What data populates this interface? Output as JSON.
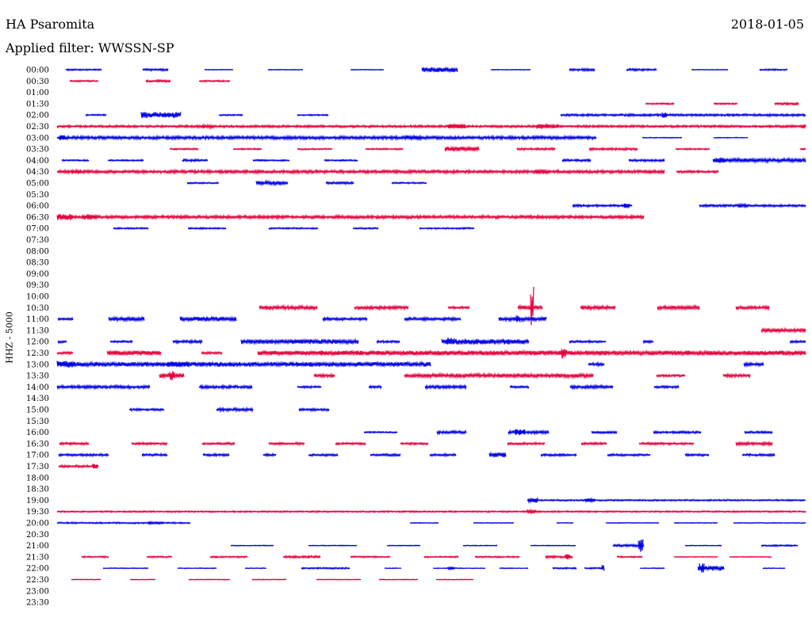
{
  "header": {
    "station": "HA Psaromita",
    "date": "2018-01-05",
    "filter": "Applied filter: WWSSN-SP"
  },
  "chart_data": {
    "type": "line",
    "title": "HA Psaromita",
    "ylabel": "HHZ - 5000",
    "row_labels": [
      "00:00",
      "00:30",
      "01:00",
      "01:30",
      "02:00",
      "02:30",
      "03:00",
      "03:30",
      "04:00",
      "04:30",
      "05:00",
      "05:30",
      "06:00",
      "06:30",
      "07:00",
      "07:30",
      "08:00",
      "08:30",
      "09:00",
      "09:30",
      "10:00",
      "10:30",
      "11:00",
      "11:30",
      "12:00",
      "12:30",
      "13:00",
      "13:30",
      "14:00",
      "14:30",
      "15:00",
      "15:30",
      "16:00",
      "16:30",
      "17:00",
      "17:30",
      "18:00",
      "18:30",
      "19:00",
      "19:30",
      "20:00",
      "20:30",
      "21:00",
      "21:30",
      "22:00",
      "22:30",
      "23:00",
      "23:30"
    ],
    "colors": {
      "even": "#0000e6",
      "odd": "#e6003c"
    },
    "rows": [
      {
        "label": "00:00",
        "segments": [
          [
            83,
            128,
            2
          ],
          [
            180,
            212,
            3
          ],
          [
            258,
            294,
            1
          ],
          [
            338,
            382,
            1
          ],
          [
            442,
            484,
            1
          ],
          [
            532,
            577,
            6
          ],
          [
            619,
            669,
            1
          ],
          [
            718,
            750,
            3
          ],
          [
            790,
            828,
            3
          ],
          [
            872,
            918,
            1
          ],
          [
            958,
            993,
            2
          ]
        ]
      },
      {
        "label": "00:30",
        "segments": [
          [
            88,
            124,
            2
          ],
          [
            184,
            215,
            3
          ],
          [
            251,
            290,
            2
          ]
        ]
      },
      {
        "label": "01:00",
        "segments": []
      },
      {
        "label": "01:30",
        "segments": [
          [
            814,
            850,
            2
          ],
          [
            900,
            930,
            2
          ],
          [
            977,
            1007,
            3
          ]
        ]
      },
      {
        "label": "02:00",
        "segments": [
          [
            108,
            134,
            2
          ],
          [
            178,
            228,
            8
          ],
          [
            276,
            306,
            2
          ],
          [
            375,
            414,
            2
          ],
          [
            707,
            1016,
            3
          ],
          [
            835,
            842,
            7
          ]
        ]
      },
      {
        "label": "02:30",
        "segments": [
          [
            72,
            1016,
            3
          ],
          [
            254,
            270,
            5
          ],
          [
            565,
            586,
            5
          ],
          [
            676,
            704,
            6
          ],
          [
            1010,
            1016,
            5
          ]
        ]
      },
      {
        "label": "03:00",
        "segments": [
          [
            72,
            752,
            4
          ],
          [
            75,
            82,
            6
          ],
          [
            512,
            532,
            6
          ],
          [
            810,
            860,
            1
          ],
          [
            900,
            943,
            1
          ]
        ]
      },
      {
        "label": "03:30",
        "segments": [
          [
            214,
            250,
            2
          ],
          [
            294,
            330,
            2
          ],
          [
            375,
            419,
            2
          ],
          [
            461,
            508,
            2
          ],
          [
            561,
            604,
            6
          ],
          [
            652,
            700,
            3
          ],
          [
            743,
            804,
            3
          ],
          [
            852,
            895,
            2
          ],
          [
            1009,
            1016,
            2
          ]
        ]
      },
      {
        "label": "04:00",
        "segments": [
          [
            78,
            112,
            2
          ],
          [
            136,
            181,
            2
          ],
          [
            230,
            262,
            3
          ],
          [
            319,
            365,
            2
          ],
          [
            409,
            451,
            2
          ],
          [
            709,
            745,
            3
          ],
          [
            793,
            838,
            3
          ],
          [
            899,
            1016,
            5
          ],
          [
            903,
            915,
            7
          ]
        ]
      },
      {
        "label": "04:30",
        "segments": [
          [
            72,
            838,
            4
          ],
          [
            90,
            102,
            6
          ],
          [
            674,
            692,
            6
          ],
          [
            853,
            906,
            3
          ]
        ]
      },
      {
        "label": "05:00",
        "segments": [
          [
            236,
            276,
            2
          ],
          [
            323,
            363,
            5
          ],
          [
            411,
            446,
            3
          ],
          [
            494,
            538,
            2
          ]
        ]
      },
      {
        "label": "05:30",
        "segments": []
      },
      {
        "label": "06:00",
        "segments": [
          [
            722,
            797,
            3
          ],
          [
            787,
            793,
            6
          ],
          [
            882,
            1016,
            3
          ],
          [
            930,
            942,
            5
          ]
        ]
      },
      {
        "label": "06:30",
        "segments": [
          [
            72,
            812,
            4
          ],
          [
            72,
            92,
            8
          ],
          [
            104,
            122,
            7
          ]
        ]
      },
      {
        "label": "07:00",
        "segments": [
          [
            143,
            187,
            2
          ],
          [
            237,
            285,
            2
          ],
          [
            339,
            401,
            2
          ],
          [
            445,
            477,
            2
          ],
          [
            529,
            598,
            2
          ]
        ]
      },
      {
        "label": "07:30",
        "segments": []
      },
      {
        "label": "08:00",
        "segments": []
      },
      {
        "label": "08:30",
        "segments": []
      },
      {
        "label": "09:00",
        "segments": []
      },
      {
        "label": "09:30",
        "segments": []
      },
      {
        "label": "10:00",
        "segments": []
      },
      {
        "label": "10:30",
        "segments": [
          [
            327,
            400,
            5
          ],
          [
            447,
            515,
            4
          ],
          [
            565,
            592,
            3
          ],
          [
            653,
            684,
            5
          ],
          [
            669,
            673,
            56
          ],
          [
            732,
            776,
            5
          ],
          [
            829,
            882,
            5
          ],
          [
            928,
            970,
            4
          ]
        ]
      },
      {
        "label": "11:00",
        "segments": [
          [
            73,
            92,
            3
          ],
          [
            137,
            182,
            5
          ],
          [
            227,
            298,
            6
          ],
          [
            407,
            463,
            4
          ],
          [
            510,
            581,
            4
          ],
          [
            629,
            689,
            5
          ],
          [
            651,
            656,
            10
          ]
        ]
      },
      {
        "label": "11:30",
        "segments": [
          [
            960,
            1016,
            5
          ]
        ]
      },
      {
        "label": "12:00",
        "segments": [
          [
            73,
            84,
            3
          ],
          [
            139,
            167,
            3
          ],
          [
            218,
            255,
            4
          ],
          [
            304,
            452,
            6
          ],
          [
            475,
            504,
            3
          ],
          [
            557,
            667,
            7
          ],
          [
            563,
            573,
            10
          ],
          [
            718,
            764,
            3
          ],
          [
            811,
            824,
            3
          ],
          [
            996,
            1016,
            3
          ]
        ]
      },
      {
        "label": "12:30",
        "segments": [
          [
            72,
            92,
            3
          ],
          [
            135,
            203,
            6
          ],
          [
            254,
            280,
            3
          ],
          [
            325,
            1016,
            6
          ],
          [
            708,
            714,
            15
          ]
        ]
      },
      {
        "label": "13:00",
        "segments": [
          [
            72,
            543,
            6
          ],
          [
            72,
            95,
            10
          ],
          [
            210,
            238,
            7
          ],
          [
            742,
            762,
            4
          ],
          [
            938,
            963,
            4
          ]
        ]
      },
      {
        "label": "13:30",
        "segments": [
          [
            201,
            232,
            6
          ],
          [
            214,
            220,
            12
          ],
          [
            396,
            422,
            4
          ],
          [
            510,
            748,
            5
          ],
          [
            828,
            864,
            3
          ],
          [
            912,
            946,
            4
          ]
        ]
      },
      {
        "label": "14:00",
        "segments": [
          [
            72,
            189,
            4
          ],
          [
            251,
            318,
            4
          ],
          [
            375,
            405,
            3
          ],
          [
            465,
            481,
            3
          ],
          [
            536,
            588,
            4
          ],
          [
            643,
            667,
            3
          ],
          [
            719,
            773,
            4
          ],
          [
            825,
            856,
            3
          ]
        ]
      },
      {
        "label": "14:30",
        "segments": []
      },
      {
        "label": "15:00",
        "segments": [
          [
            163,
            207,
            3
          ],
          [
            273,
            319,
            4
          ],
          [
            377,
            415,
            3
          ]
        ]
      },
      {
        "label": "15:30",
        "segments": []
      },
      {
        "label": "16:00",
        "segments": [
          [
            459,
            501,
            2
          ],
          [
            551,
            588,
            4
          ],
          [
            641,
            692,
            4
          ],
          [
            650,
            662,
            8
          ],
          [
            746,
            778,
            3
          ],
          [
            824,
            884,
            3
          ],
          [
            939,
            974,
            3
          ]
        ]
      },
      {
        "label": "16:30",
        "segments": [
          [
            75,
            112,
            3
          ],
          [
            166,
            211,
            3
          ],
          [
            255,
            296,
            3
          ],
          [
            339,
            384,
            3
          ],
          [
            423,
            461,
            3
          ],
          [
            505,
            540,
            3
          ],
          [
            640,
            687,
            3
          ],
          [
            733,
            765,
            3
          ],
          [
            806,
            875,
            3
          ],
          [
            928,
            974,
            4
          ]
        ]
      },
      {
        "label": "17:00",
        "segments": [
          [
            74,
            137,
            3
          ],
          [
            179,
            211,
            3
          ],
          [
            256,
            289,
            3
          ],
          [
            332,
            348,
            3
          ],
          [
            389,
            426,
            3
          ],
          [
            467,
            505,
            3
          ],
          [
            542,
            575,
            3
          ],
          [
            617,
            638,
            6
          ],
          [
            682,
            727,
            3
          ],
          [
            766,
            820,
            3
          ],
          [
            864,
            894,
            3
          ],
          [
            936,
            977,
            3
          ]
        ]
      },
      {
        "label": "17:30",
        "segments": [
          [
            74,
            124,
            3
          ],
          [
            117,
            123,
            6
          ]
        ]
      },
      {
        "label": "18:00",
        "segments": []
      },
      {
        "label": "18:30",
        "segments": []
      },
      {
        "label": "19:00",
        "segments": [
          [
            665,
            1016,
            2
          ],
          [
            666,
            678,
            7
          ],
          [
            738,
            750,
            4
          ]
        ]
      },
      {
        "label": "19:30",
        "segments": [
          [
            72,
            1016,
            2
          ],
          [
            665,
            675,
            6
          ]
        ]
      },
      {
        "label": "20:00",
        "segments": [
          [
            72,
            240,
            2
          ],
          [
            186,
            206,
            3
          ],
          [
            517,
            553,
            1
          ],
          [
            597,
            648,
            1
          ],
          [
            702,
            723,
            1
          ],
          [
            764,
            831,
            1
          ],
          [
            850,
            905,
            1
          ],
          [
            925,
            1016,
            1
          ]
        ]
      },
      {
        "label": "20:30",
        "segments": []
      },
      {
        "label": "21:00",
        "segments": [
          [
            291,
            345,
            1
          ],
          [
            389,
            450,
            1
          ],
          [
            488,
            530,
            1
          ],
          [
            584,
            627,
            1
          ],
          [
            669,
            726,
            1
          ],
          [
            773,
            812,
            3
          ],
          [
            805,
            811,
            19
          ],
          [
            864,
            910,
            1
          ],
          [
            960,
            1006,
            2
          ]
        ]
      },
      {
        "label": "21:30",
        "segments": [
          [
            103,
            137,
            2
          ],
          [
            185,
            217,
            2
          ],
          [
            265,
            312,
            2
          ],
          [
            357,
            404,
            3
          ],
          [
            442,
            492,
            2
          ],
          [
            535,
            578,
            2
          ],
          [
            599,
            655,
            2
          ],
          [
            688,
            722,
            3
          ],
          [
            713,
            719,
            8
          ],
          [
            778,
            810,
            2
          ],
          [
            850,
            905,
            1
          ],
          [
            920,
            973,
            1
          ]
        ]
      },
      {
        "label": "22:00",
        "segments": [
          [
            130,
            187,
            1
          ],
          [
            224,
            273,
            1
          ],
          [
            309,
            336,
            1
          ],
          [
            380,
            441,
            2
          ],
          [
            485,
            506,
            1
          ],
          [
            546,
            612,
            1
          ],
          [
            565,
            573,
            4
          ],
          [
            630,
            666,
            1
          ],
          [
            697,
            727,
            2
          ],
          [
            737,
            760,
            2
          ],
          [
            759,
            762,
            8
          ],
          [
            807,
            838,
            1
          ],
          [
            880,
            913,
            6
          ],
          [
            882,
            888,
            12
          ],
          [
            962,
            990,
            1
          ]
        ]
      },
      {
        "label": "22:30",
        "segments": [
          [
            90,
            127,
            1
          ],
          [
            164,
            196,
            1
          ],
          [
            238,
            290,
            1
          ],
          [
            318,
            361,
            1
          ],
          [
            399,
            455,
            1
          ],
          [
            478,
            527,
            1
          ],
          [
            550,
            597,
            1
          ]
        ]
      },
      {
        "label": "23:00",
        "segments": []
      },
      {
        "label": "23:30",
        "segments": []
      }
    ]
  }
}
